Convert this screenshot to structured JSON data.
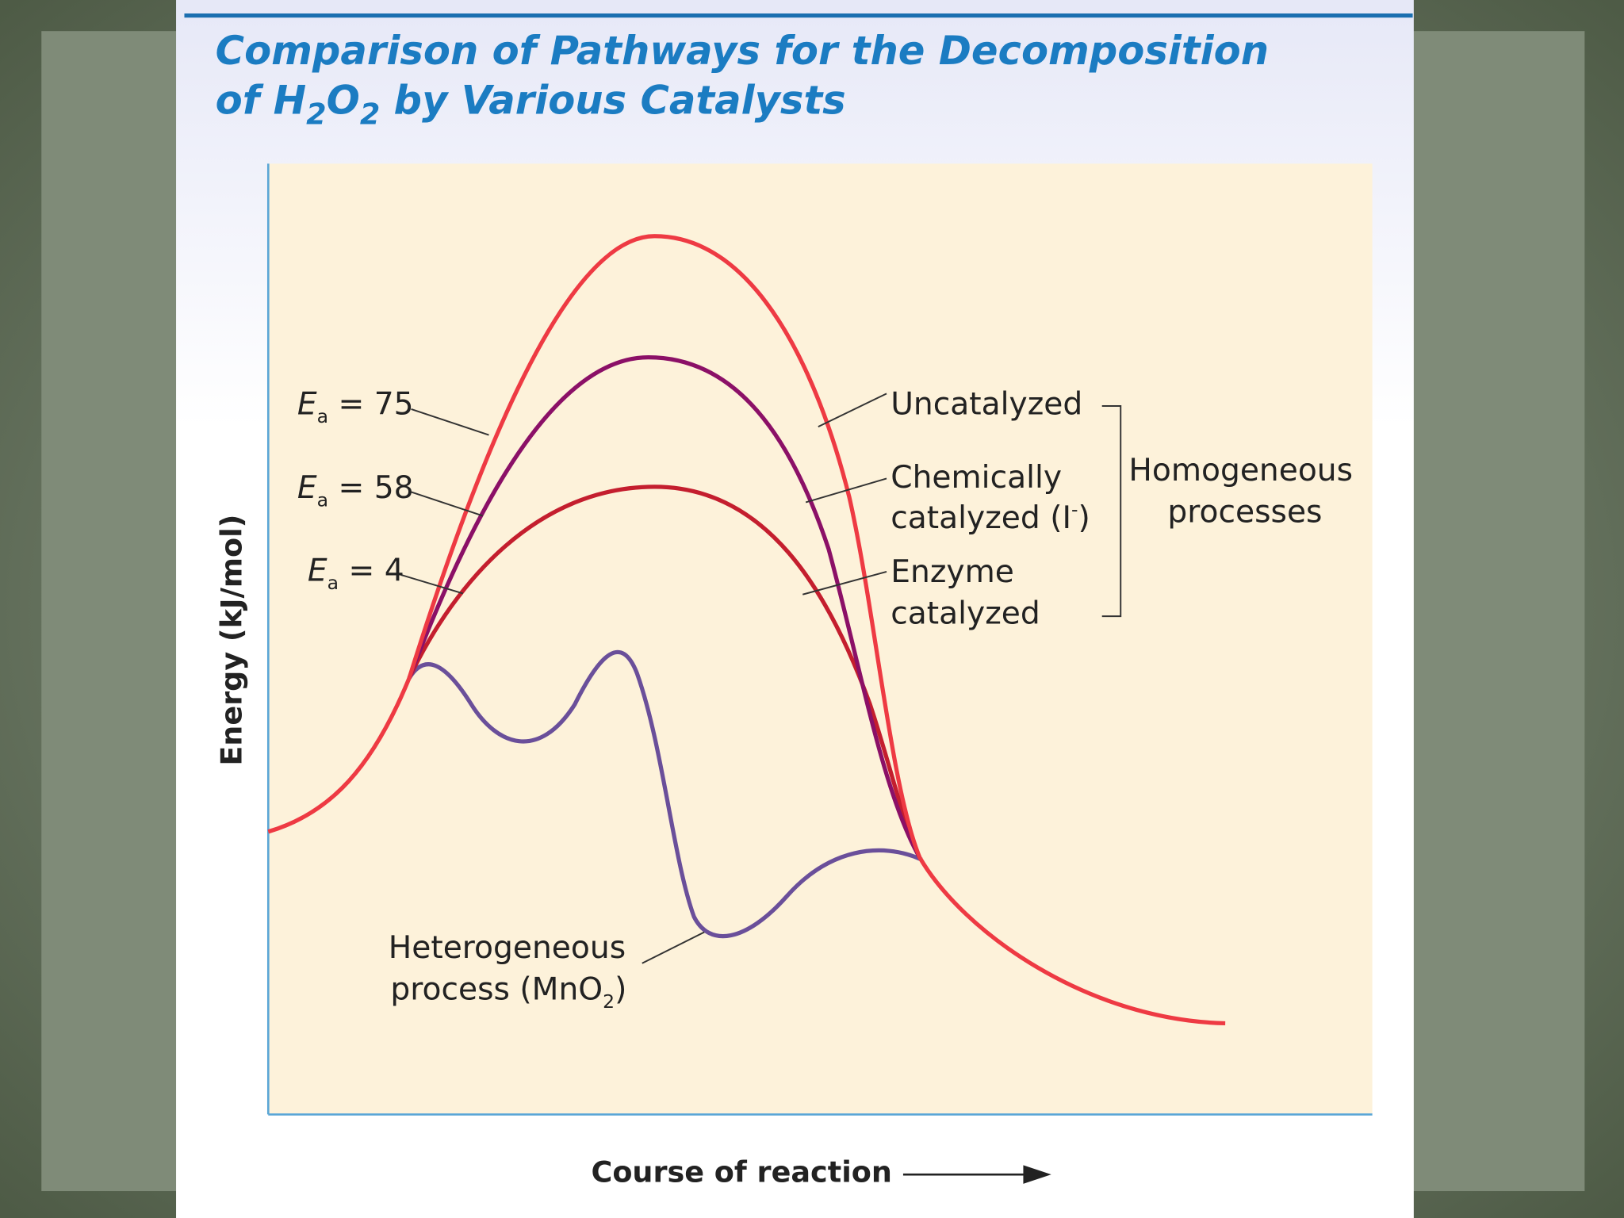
{
  "title": {
    "line1": "Comparison of Pathways for the Decomposition",
    "line2": [
      "of H",
      "2",
      "O",
      "2",
      " by Various Catalysts"
    ]
  },
  "y_axis_label": "Energy (kJ/mol)",
  "x_axis_label": "Course of reaction",
  "activation_labels": [
    {
      "symbol": "E",
      "subscript": "a",
      "text": " = 75"
    },
    {
      "symbol": "E",
      "subscript": "a",
      "text": " = 58"
    },
    {
      "symbol": "E",
      "subscript": "a",
      "text": " = 4"
    }
  ],
  "curve_labels": {
    "uncatalyzed": "Uncatalyzed",
    "chemical": [
      "Chemically",
      "catalyzed (I",
      "-",
      ")"
    ],
    "enzyme": [
      "Enzyme",
      "catalyzed"
    ],
    "homogeneous": [
      "Homogeneous",
      "processes"
    ],
    "heterogeneous": [
      "Heterogeneous",
      "process (MnO",
      "2",
      ")"
    ]
  }
}
